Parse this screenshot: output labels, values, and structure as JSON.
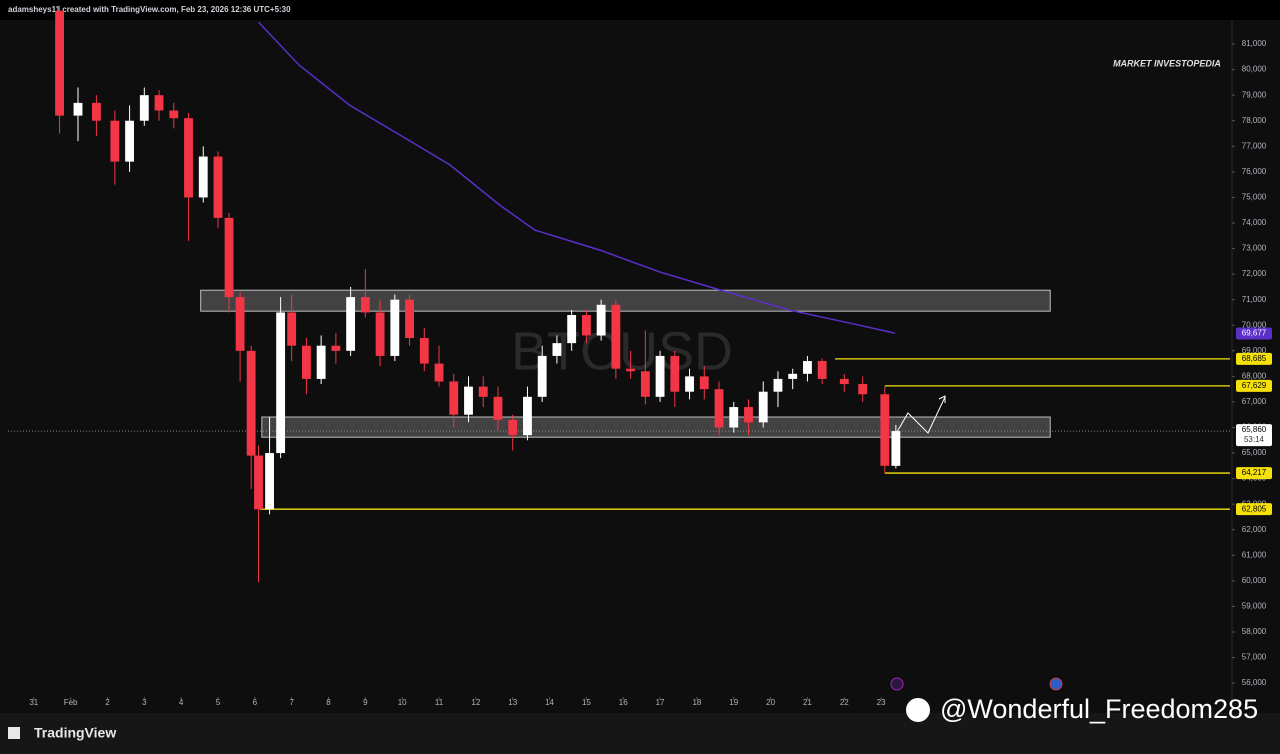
{
  "header": "adamsheys11 created with TradingView.com, Feb 23, 2026 12:36 UTC+5:30",
  "chart_data": {
    "type": "candlestick",
    "symbol": "BTCUSD",
    "brand": "MARKET INVESTOPEDIA",
    "up_color": "#ffffff",
    "down_color": "#f23645",
    "grid": false,
    "x": [
      0.7,
      1.2,
      1.7,
      2.2,
      2.6,
      3.0,
      3.4,
      3.8,
      4.2,
      4.6,
      5.0,
      5.3,
      5.6,
      5.9,
      6.1,
      6.4,
      6.7,
      7.0,
      7.4,
      7.8,
      8.2,
      8.6,
      9.0,
      9.4,
      9.8,
      10.2,
      10.6,
      11.0,
      11.4,
      11.8,
      12.2,
      12.6,
      13.0,
      13.4,
      13.8,
      14.2,
      14.6,
      15.0,
      15.4,
      15.8,
      16.2,
      16.6,
      17.0,
      17.4,
      17.8,
      18.2,
      18.6,
      19.0,
      19.4,
      19.8,
      20.2,
      20.6,
      21.0,
      21.4,
      22.0,
      22.5,
      23.1,
      23.4
    ],
    "open": [
      82300,
      78200,
      78700,
      78000,
      76400,
      78000,
      79000,
      78400,
      78100,
      75000,
      76600,
      74200,
      71100,
      69000,
      64900,
      62800,
      65000,
      70500,
      69200,
      67900,
      69200,
      69000,
      71100,
      70500,
      68800,
      71000,
      69500,
      68500,
      67800,
      66500,
      67600,
      67200,
      66300,
      65700,
      67200,
      68800,
      69300,
      70400,
      69600,
      70800,
      68300,
      68200,
      67200,
      68800,
      67400,
      68000,
      67500,
      66000,
      66800,
      66200,
      67400,
      67900,
      68100,
      68600,
      67900,
      67700,
      67300,
      64500
    ],
    "high": [
      82500,
      79300,
      79000,
      78400,
      78600,
      79300,
      79200,
      78700,
      78300,
      77000,
      76800,
      74400,
      71300,
      69200,
      65300,
      66400,
      71100,
      71200,
      69500,
      69600,
      69700,
      71500,
      72200,
      71000,
      71200,
      71200,
      69900,
      69200,
      68100,
      68000,
      68000,
      67600,
      66500,
      67600,
      69200,
      69600,
      70600,
      70600,
      71000,
      71000,
      69000,
      69800,
      69000,
      69000,
      68300,
      68400,
      67800,
      67000,
      67100,
      67800,
      68200,
      68300,
      68800,
      68700,
      68100,
      68000,
      67600,
      66100
    ],
    "low": [
      77500,
      77200,
      77400,
      75500,
      76000,
      77800,
      78000,
      77700,
      73300,
      74800,
      73800,
      70500,
      67800,
      63600,
      59950,
      62600,
      64800,
      68600,
      67300,
      67700,
      68500,
      68800,
      70300,
      68400,
      68600,
      69200,
      68200,
      67600,
      66000,
      66200,
      66800,
      65900,
      65100,
      65500,
      67000,
      68500,
      69000,
      69300,
      69400,
      67900,
      67900,
      66900,
      67000,
      66800,
      67100,
      67100,
      65700,
      65800,
      65700,
      66000,
      66800,
      67500,
      67800,
      67700,
      67400,
      67000,
      64200,
      64400
    ],
    "close": [
      78200,
      78700,
      78000,
      76400,
      78000,
      79000,
      78400,
      78100,
      75000,
      76600,
      74200,
      71100,
      69000,
      64900,
      62800,
      65000,
      70500,
      69200,
      67900,
      69200,
      69000,
      71100,
      70500,
      68800,
      71000,
      69500,
      68500,
      67800,
      66500,
      67600,
      67200,
      66300,
      65700,
      67200,
      68800,
      69300,
      70400,
      69600,
      70800,
      68300,
      68200,
      67200,
      68800,
      67400,
      68000,
      67500,
      66000,
      66800,
      66200,
      67400,
      67900,
      68100,
      68600,
      67900,
      67700,
      67300,
      64500,
      65860
    ],
    "xlim": [
      -0.7,
      32.47
    ],
    "xticks": [
      {
        "value": 0,
        "label": "31"
      },
      {
        "value": 1,
        "label": "Feb"
      },
      2,
      3,
      4,
      5,
      6,
      7,
      8,
      9,
      10,
      11,
      12,
      13,
      14,
      15,
      16,
      17,
      18,
      19,
      20,
      21,
      22,
      23
    ],
    "ylim": [
      55340,
      82410
    ],
    "yticks": [
      {
        "value": 56000,
        "label": "56,000"
      },
      {
        "value": 57000,
        "label": "57,000"
      },
      {
        "value": 58000,
        "label": "58,000"
      },
      {
        "value": 59000,
        "label": "59,000"
      },
      {
        "value": 60000,
        "label": "60,000"
      },
      {
        "value": 61000,
        "label": "61,000"
      },
      {
        "value": 62000,
        "label": "62,000"
      },
      {
        "value": 63000,
        "label": "63,000"
      },
      {
        "value": 64000,
        "label": "64,000"
      },
      {
        "value": 65000,
        "label": "65,000"
      },
      {
        "value": 66000,
        "label": "66,000"
      },
      {
        "value": 67000,
        "label": "67,000"
      },
      {
        "value": 68000,
        "label": "68,000"
      },
      {
        "value": 69000,
        "label": "69,000"
      },
      {
        "value": 70000,
        "label": "70,000"
      },
      {
        "value": 71000,
        "label": "71,000"
      },
      {
        "value": 72000,
        "label": "72,000"
      },
      {
        "value": 73000,
        "label": "73,000"
      },
      {
        "value": 74000,
        "label": "74,000"
      },
      {
        "value": 75000,
        "label": "75,000"
      },
      {
        "value": 76000,
        "label": "76,000"
      },
      {
        "value": 77000,
        "label": "77,000"
      },
      {
        "value": 78000,
        "label": "78,000"
      },
      {
        "value": 79000,
        "label": "79,000"
      },
      {
        "value": 80000,
        "label": "80,000"
      },
      {
        "value": 81000,
        "label": "81,000"
      }
    ],
    "moving_average": {
      "color": "#5b2fc9",
      "label": "69,677",
      "value": 69677,
      "x": [
        6.1,
        7.2,
        8.57,
        9.94,
        11.3,
        12.65,
        13.6,
        15.37,
        17.0,
        18.63,
        20.53,
        22.16,
        23.38
      ],
      "values": [
        81860,
        80180,
        78610,
        77440,
        76270,
        74700,
        73720,
        72940,
        72080,
        71380,
        70590,
        70080,
        69690
      ]
    },
    "zones": [
      {
        "low": 70550,
        "high": 71370,
        "x_start": 4.53,
        "x_end": 27.59
      },
      {
        "low": 65620,
        "high": 66410,
        "x_start": 6.19,
        "x_end": 27.59
      }
    ],
    "levels": [
      {
        "value": 68685,
        "label": "68,685",
        "x_start": 21.75
      },
      {
        "value": 67629,
        "label": "67,629",
        "x_start": 23.1
      },
      {
        "value": 64217,
        "label": "64,217",
        "x_start": 23.1
      },
      {
        "value": 62805,
        "label": "62,805",
        "x_start": 6.14
      }
    ],
    "level_color": "#f5e10a",
    "last_price": {
      "value": 65860,
      "label": "65,860",
      "countdown": "53:14"
    }
  },
  "footer": {
    "logo": "TradingView",
    "watermark": "@Wonderful_Freedom285"
  }
}
